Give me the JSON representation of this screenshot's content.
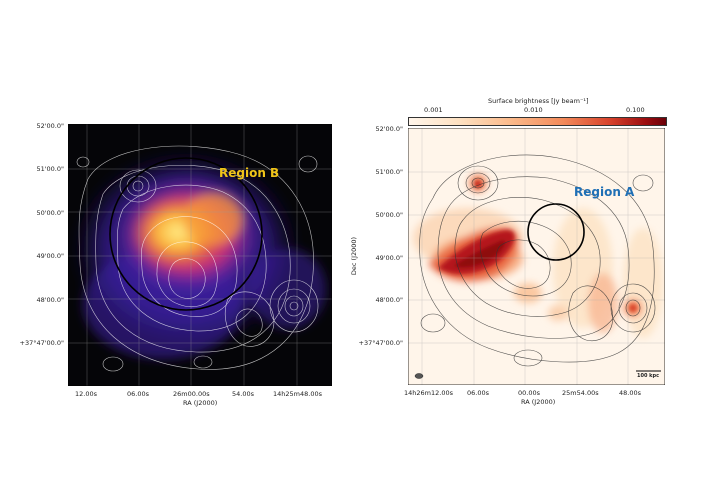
{
  "colors": {
    "region_b": "#f0c419",
    "region_a": "#1f6fb5",
    "left_bg": "#050508",
    "right_bg": "#fff5ea"
  },
  "left_panel": {
    "region_label": "Region B",
    "y_ticks": [
      "52'00.0\"",
      "51'00.0\"",
      "50'00.0\"",
      "49'00.0\"",
      "48'00.0\"",
      "+37°47'00.0\""
    ],
    "x_ticks": [
      "12.00s",
      "06.00s",
      "26m00.00s",
      "54.00s",
      "14h25m48.00s"
    ],
    "x_label": "RA (J2000)"
  },
  "right_panel": {
    "region_label": "Region A",
    "colorbar_title": "Surface brightness [Jy beam⁻¹]",
    "colorbar_ticks": [
      "0.001",
      "0.010",
      "0.100"
    ],
    "y_ticks": [
      "52'00.0\"",
      "51'00.0\"",
      "50'00.0\"",
      "49'00.0\"",
      "48'00.0\"",
      "+37°47'00.0\""
    ],
    "x_ticks": [
      "14h26m12.00s",
      "06.00s",
      "00.00s",
      "25m54.00s",
      "48.00s"
    ],
    "x_label": "RA (J2000)",
    "y_label": "Dec (J2000)",
    "scale_bar": "100 kpc"
  }
}
